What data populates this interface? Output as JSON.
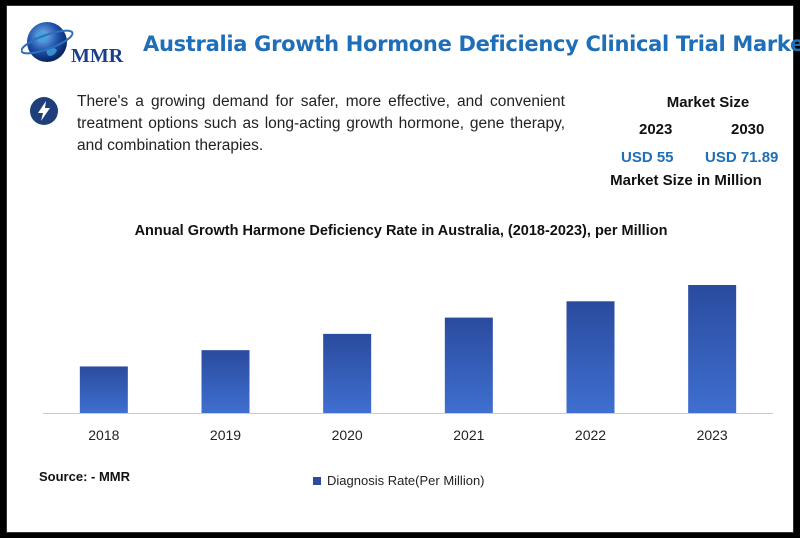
{
  "logo": {
    "text": "MMR",
    "icon": "globe-icon"
  },
  "title": "Australia Growth Hormone Deficiency Clinical Trial Market",
  "description": {
    "icon": "lightning-bolt-icon",
    "text": "There's a growing demand for safer, more effective, and convenient treatment options such as long-acting growth hormone, gene therapy, and combination therapies."
  },
  "market_size": {
    "heading": "Market Size",
    "years": [
      "2023",
      "2030"
    ],
    "values": [
      "USD 55",
      "USD 71.89"
    ],
    "footer": "Market Size in Million",
    "value_color": "#1f6fb8"
  },
  "source": "Source: - MMR",
  "chart_data": {
    "type": "bar",
    "title": "Annual Growth Harmone Deficiency Rate in Australia, (2018-2023), per Million",
    "categories": [
      "2018",
      "2019",
      "2020",
      "2021",
      "2022",
      "2023"
    ],
    "series": [
      {
        "name": "Diagnosis Rate(Per Million)",
        "values": [
          40,
          54,
          68,
          82,
          96,
          110
        ]
      }
    ],
    "ylim": [
      0,
      110
    ],
    "grid": false,
    "legend_position": "bottom",
    "bar_color_top": "#2a4b9e",
    "bar_color_bottom": "#3f6fd0"
  }
}
